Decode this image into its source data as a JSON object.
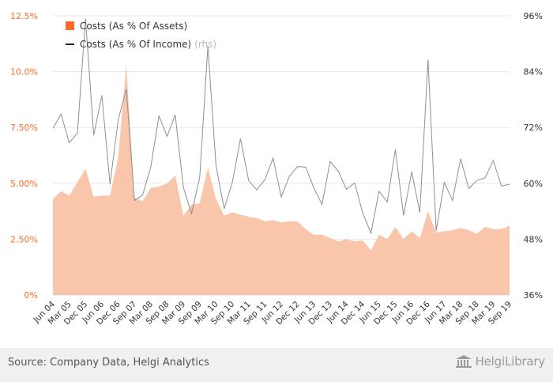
{
  "chart_data": {
    "type": "area",
    "y_left": {
      "ticks": [
        "0%",
        "2.50%",
        "5.00%",
        "7.50%",
        "10.0%",
        "12.5%"
      ],
      "range": [
        0,
        12.5
      ]
    },
    "y_right": {
      "ticks": [
        "36%",
        "48%",
        "60%",
        "72%",
        "84%",
        "96%"
      ],
      "range": [
        36,
        96
      ]
    },
    "x_labels": [
      "Jun 04",
      "Mar 05",
      "Dec 05",
      "Jun 06",
      "Dec 06",
      "Sep 07",
      "Mar 08",
      "Sep 08",
      "Mar 09",
      "Sep 09",
      "Mar 10",
      "Sep 10",
      "Mar 11",
      "Sep 11",
      "Jun 12",
      "Dec 12",
      "Jun 13",
      "Dec 13",
      "Jun 14",
      "Dec 14",
      "Jun 15",
      "Dec 15",
      "Jun 16",
      "Dec 16",
      "Jun 17",
      "Mar 18",
      "Sep 18",
      "Mar 19",
      "Sep 19"
    ],
    "series": [
      {
        "name": "Costs (As % Of Assets)",
        "axis": "left",
        "color": "#ff6a2b",
        "values": [
          4.3,
          4.65,
          4.45,
          5.05,
          5.65,
          4.4,
          4.45,
          4.45,
          6.15,
          10.3,
          4.35,
          4.2,
          4.8,
          4.85,
          5.0,
          5.35,
          3.55,
          4.05,
          4.1,
          5.7,
          4.3,
          3.55,
          3.7,
          3.6,
          3.5,
          3.45,
          3.3,
          3.35,
          3.25,
          3.3,
          3.3,
          2.95,
          2.7,
          2.7,
          2.55,
          2.4,
          2.5,
          2.4,
          2.45,
          2.0,
          2.7,
          2.5,
          3.05,
          2.5,
          2.85,
          2.55,
          3.75,
          2.8,
          2.85,
          2.9,
          3.0,
          2.9,
          2.75,
          3.05,
          2.95,
          2.95,
          3.1
        ]
      },
      {
        "name": "Costs (As % Of Income)",
        "axis": "right",
        "color": "#555555",
        "values": [
          71.8,
          74.9,
          68.7,
          70.8,
          95.4,
          70.3,
          78.9,
          59.8,
          73.6,
          80.3,
          56.3,
          57.5,
          63.5,
          74.5,
          70.1,
          74.7,
          59.1,
          53.5,
          61.2,
          89.5,
          63.8,
          54.5,
          60.2,
          69.6,
          60.6,
          58.6,
          60.8,
          65.4,
          57.1,
          61.5,
          63.6,
          63.5,
          59.0,
          55.5,
          64.7,
          62.6,
          58.7,
          60.1,
          53.6,
          49.3,
          58.3,
          56.0,
          67.3,
          53.1,
          62.5,
          53.7,
          86.6,
          49.8,
          60.2,
          56.3,
          65.3,
          58.9,
          60.6,
          61.2,
          64.9,
          59.4,
          59.8
        ]
      }
    ],
    "legend": [
      {
        "label": "Costs (As % Of Assets)",
        "note": ""
      },
      {
        "label": "Costs (As % Of Income)",
        "note": "(rhs)"
      }
    ]
  },
  "footer": {
    "source": "Source: Company Data, Helgi Analytics",
    "brand": "HelgiLibrary"
  }
}
